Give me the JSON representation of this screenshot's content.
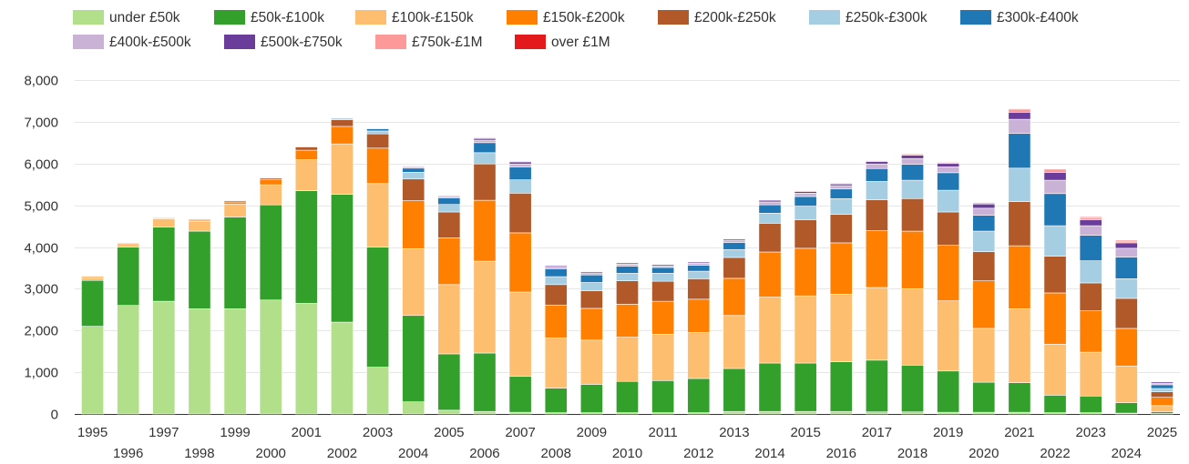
{
  "chart_data": {
    "type": "bar",
    "stacked": true,
    "title": "",
    "xlabel": "",
    "ylabel": "",
    "ylim": [
      0,
      8000
    ],
    "y_ticks": [
      "0",
      "1,000",
      "2,000",
      "3,000",
      "4,000",
      "5,000",
      "6,000",
      "7,000",
      "8,000"
    ],
    "y_tick_values": [
      0,
      1000,
      2000,
      3000,
      4000,
      5000,
      6000,
      7000,
      8000
    ],
    "grid": true,
    "legend_position": "top",
    "categories": [
      "1995",
      "1996",
      "1997",
      "1998",
      "1999",
      "2000",
      "2001",
      "2002",
      "2003",
      "2004",
      "2005",
      "2006",
      "2007",
      "2008",
      "2009",
      "2010",
      "2011",
      "2012",
      "2013",
      "2014",
      "2015",
      "2016",
      "2017",
      "2018",
      "2019",
      "2020",
      "2021",
      "2022",
      "2023",
      "2024",
      "2025"
    ],
    "series": [
      {
        "name": "under £50k",
        "color": "#b2df8a",
        "values": [
          2100,
          2600,
          2700,
          2520,
          2520,
          2730,
          2650,
          2200,
          1120,
          290,
          90,
          60,
          40,
          30,
          30,
          30,
          30,
          30,
          60,
          60,
          60,
          60,
          50,
          50,
          40,
          40,
          40,
          30,
          30,
          20,
          10
        ]
      },
      {
        "name": "£50k-£100k",
        "color": "#33a02c",
        "values": [
          1100,
          1400,
          1780,
          1860,
          2200,
          2280,
          2700,
          3060,
          2880,
          2070,
          1350,
          1400,
          860,
          590,
          680,
          750,
          770,
          820,
          1030,
          1160,
          1160,
          1190,
          1240,
          1120,
          990,
          720,
          710,
          420,
          400,
          250,
          40
        ]
      },
      {
        "name": "£100k-£150k",
        "color": "#fdbf6f",
        "values": [
          60,
          60,
          200,
          230,
          310,
          480,
          740,
          1210,
          1520,
          1600,
          1660,
          2200,
          2020,
          1200,
          1060,
          1060,
          1110,
          1100,
          1270,
          1580,
          1610,
          1620,
          1740,
          1830,
          1680,
          1290,
          1770,
          1220,
          1050,
          880,
          150
        ]
      },
      {
        "name": "£150k-£200k",
        "color": "#ff7f00",
        "values": [
          30,
          30,
          20,
          30,
          50,
          120,
          230,
          420,
          850,
          1150,
          1120,
          1460,
          1420,
          790,
          760,
          790,
          790,
          800,
          890,
          1080,
          1140,
          1230,
          1360,
          1380,
          1330,
          1140,
          1510,
          1230,
          990,
          900,
          200
        ]
      },
      {
        "name": "£200k-£250k",
        "color": "#b15928",
        "values": [
          10,
          10,
          10,
          20,
          30,
          40,
          80,
          160,
          340,
          520,
          620,
          870,
          950,
          490,
          420,
          560,
          480,
          490,
          500,
          690,
          680,
          680,
          740,
          780,
          800,
          700,
          1060,
          880,
          670,
          720,
          130
        ]
      },
      {
        "name": "£250k-£300k",
        "color": "#a6cee3",
        "values": [
          0,
          0,
          0,
          10,
          10,
          10,
          10,
          20,
          70,
          160,
          180,
          270,
          320,
          190,
          200,
          180,
          190,
          180,
          190,
          240,
          330,
          380,
          440,
          440,
          520,
          490,
          800,
          730,
          530,
          470,
          80
        ]
      },
      {
        "name": "£300k-£400k",
        "color": "#1f78b4",
        "values": [
          0,
          0,
          0,
          10,
          10,
          10,
          10,
          20,
          50,
          100,
          160,
          240,
          310,
          190,
          180,
          170,
          140,
          140,
          170,
          200,
          230,
          230,
          310,
          380,
          420,
          380,
          830,
          770,
          610,
          520,
          90
        ]
      },
      {
        "name": "£400k-£500k",
        "color": "#cab2d6",
        "values": [
          0,
          0,
          0,
          0,
          0,
          0,
          0,
          0,
          20,
          30,
          30,
          60,
          70,
          40,
          50,
          50,
          40,
          50,
          50,
          70,
          80,
          80,
          110,
          140,
          140,
          170,
          340,
          320,
          230,
          210,
          40
        ]
      },
      {
        "name": "£500k-£750k",
        "color": "#6a3d9a",
        "values": [
          0,
          0,
          0,
          0,
          0,
          0,
          0,
          0,
          10,
          20,
          20,
          40,
          50,
          30,
          30,
          30,
          30,
          30,
          30,
          40,
          40,
          40,
          60,
          80,
          80,
          100,
          170,
          190,
          140,
          130,
          30
        ]
      },
      {
        "name": "£750k-£1M",
        "color": "#fb9a99",
        "values": [
          0,
          0,
          0,
          0,
          0,
          0,
          0,
          0,
          0,
          10,
          10,
          20,
          20,
          10,
          10,
          10,
          10,
          10,
          10,
          10,
          20,
          20,
          20,
          30,
          30,
          30,
          60,
          60,
          50,
          40,
          10
        ]
      },
      {
        "name": "over £1M",
        "color": "#e31a1c",
        "values": [
          0,
          0,
          0,
          0,
          0,
          0,
          0,
          0,
          0,
          0,
          0,
          10,
          10,
          0,
          0,
          0,
          0,
          0,
          0,
          0,
          10,
          10,
          10,
          10,
          10,
          10,
          20,
          20,
          20,
          20,
          0
        ]
      }
    ]
  }
}
